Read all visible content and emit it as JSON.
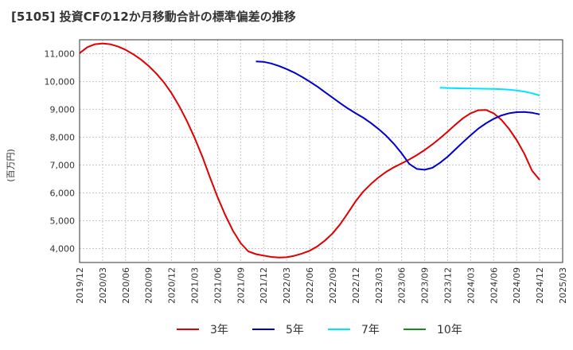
{
  "chart_data": {
    "type": "line",
    "title": "[5105]  投資CFの12か月移動合計の標準偏差の推移",
    "ylabel": "(百万円)",
    "xlabel": "",
    "ylim": [
      3500,
      11500
    ],
    "yticks": [
      4000,
      5000,
      6000,
      7000,
      8000,
      9000,
      10000,
      11000
    ],
    "ytick_labels": [
      "4,000",
      "5,000",
      "6,000",
      "7,000",
      "8,000",
      "9,000",
      "10,000",
      "11,000"
    ],
    "xticks": [
      "2019/12",
      "2020/03",
      "2020/06",
      "2020/09",
      "2020/12",
      "2021/03",
      "2021/06",
      "2021/09",
      "2021/12",
      "2022/03",
      "2022/06",
      "2022/09",
      "2022/12",
      "2023/03",
      "2023/06",
      "2023/09",
      "2023/12",
      "2024/03",
      "2024/06",
      "2024/09",
      "2024/12",
      "2025/03"
    ],
    "grid": true,
    "legend_position": "bottom",
    "series": [
      {
        "name": "3年",
        "color": "#e00000",
        "x": [
          "2019/12",
          "2020/01",
          "2020/02",
          "2020/03",
          "2020/04",
          "2020/05",
          "2020/06",
          "2020/07",
          "2020/08",
          "2020/09",
          "2020/10",
          "2020/11",
          "2020/12",
          "2021/01",
          "2021/02",
          "2021/03",
          "2021/04",
          "2021/05",
          "2021/06",
          "2021/07",
          "2021/08",
          "2021/09",
          "2021/10",
          "2021/11",
          "2021/12",
          "2022/01",
          "2022/02",
          "2022/03",
          "2022/04",
          "2022/05",
          "2022/06",
          "2022/07",
          "2022/08",
          "2022/09",
          "2022/10",
          "2022/11",
          "2022/12",
          "2023/01",
          "2023/02",
          "2023/03",
          "2023/04",
          "2023/05",
          "2023/06",
          "2023/07",
          "2023/08",
          "2023/09",
          "2023/10",
          "2023/11",
          "2023/12",
          "2024/01",
          "2024/02",
          "2024/03",
          "2024/04",
          "2024/05",
          "2024/06",
          "2024/07",
          "2024/08",
          "2024/09",
          "2024/10",
          "2024/11",
          "2024/12"
        ],
        "values": [
          11020,
          11230,
          11340,
          11370,
          11340,
          11260,
          11140,
          10980,
          10790,
          10560,
          10290,
          9970,
          9580,
          9110,
          8580,
          7980,
          7310,
          6560,
          5850,
          5200,
          4640,
          4200,
          3900,
          3800,
          3750,
          3700,
          3680,
          3690,
          3740,
          3820,
          3920,
          4080,
          4290,
          4550,
          4880,
          5280,
          5700,
          6050,
          6320,
          6560,
          6760,
          6920,
          7060,
          7200,
          7360,
          7540,
          7740,
          7960,
          8200,
          8450,
          8680,
          8860,
          8970,
          8980,
          8860,
          8630,
          8300,
          7900,
          7410,
          6800,
          6470
        ]
      },
      {
        "name": "5年",
        "color": "#0000cc",
        "x": [
          "2021/11",
          "2021/12",
          "2022/01",
          "2022/02",
          "2022/03",
          "2022/04",
          "2022/05",
          "2022/06",
          "2022/07",
          "2022/08",
          "2022/09",
          "2022/10",
          "2022/11",
          "2022/12",
          "2023/01",
          "2023/02",
          "2023/03",
          "2023/04",
          "2023/05",
          "2023/06",
          "2023/07",
          "2023/08",
          "2023/09",
          "2023/10",
          "2023/11",
          "2023/12",
          "2024/01",
          "2024/02",
          "2024/03",
          "2024/04",
          "2024/05",
          "2024/06",
          "2024/07",
          "2024/08",
          "2024/09",
          "2024/10",
          "2024/11",
          "2024/12"
        ],
        "values": [
          10720,
          10710,
          10650,
          10560,
          10450,
          10320,
          10170,
          10000,
          9820,
          9620,
          9420,
          9220,
          9030,
          8860,
          8700,
          8510,
          8290,
          8050,
          7760,
          7420,
          7040,
          6860,
          6830,
          6900,
          7080,
          7300,
          7560,
          7820,
          8070,
          8310,
          8500,
          8660,
          8780,
          8860,
          8900,
          8910,
          8880,
          8820
        ]
      },
      {
        "name": "7年",
        "color": "#00e5ff",
        "x": [
          "2023/11",
          "2023/12",
          "2024/01",
          "2024/02",
          "2024/03",
          "2024/04",
          "2024/05",
          "2024/06",
          "2024/07",
          "2024/08",
          "2024/09",
          "2024/10",
          "2024/11",
          "2024/12"
        ],
        "values": [
          9780,
          9770,
          9760,
          9755,
          9750,
          9745,
          9740,
          9735,
          9725,
          9710,
          9680,
          9640,
          9580,
          9500
        ]
      },
      {
        "name": "10年",
        "color": "#1a8a1a",
        "x": [],
        "values": []
      }
    ]
  }
}
